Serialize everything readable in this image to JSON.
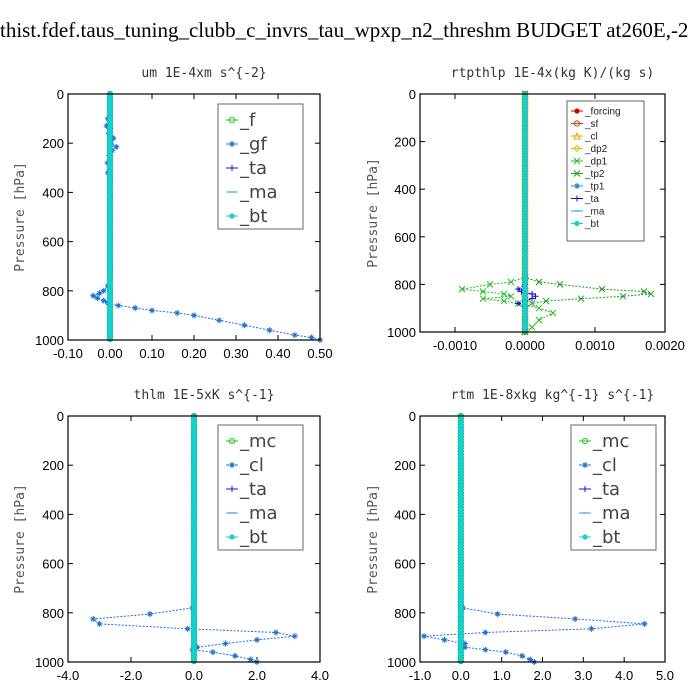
{
  "title": "thist.fdef.taus_tuning_clubb_c_invrs_tau_wpxp_n2_threshm  BUDGET at260E,-2",
  "chart_data": [
    {
      "type": "line",
      "title": "um   1E-4xm s^{-2}",
      "ylabel": "Pressure [hPa]",
      "xlim": [
        -0.1,
        0.5
      ],
      "ylim": [
        1000,
        0
      ],
      "xticks": [
        "-0.10",
        "0.00",
        "0.10",
        "0.20",
        "0.30",
        "0.40",
        "0.50"
      ],
      "yticks": [
        "0",
        "200",
        "400",
        "600",
        "800",
        "1000"
      ],
      "legend_position": "upper-right",
      "series": [
        {
          "name": "_f",
          "color": "#22cc22",
          "marker": "circle",
          "y": [
            0,
            100,
            200,
            300,
            400,
            500,
            600,
            700,
            800,
            850,
            900,
            950,
            1000
          ],
          "values": [
            0,
            0,
            0,
            0,
            0,
            0,
            0,
            0,
            0,
            0,
            0,
            0,
            0
          ]
        },
        {
          "name": "_gf",
          "color": "#1f6fd0",
          "marker": "star",
          "y": [
            0,
            50,
            100,
            130,
            140,
            160,
            180,
            200,
            215,
            230,
            250,
            280,
            300,
            320,
            350,
            400,
            500,
            600,
            700,
            780,
            800,
            810,
            820,
            830,
            840,
            850,
            860,
            870,
            880,
            890,
            900,
            920,
            940,
            960,
            980,
            990,
            1000
          ],
          "values": [
            0,
            0,
            -0.005,
            -0.008,
            0,
            -0.003,
            0.008,
            0.002,
            0.015,
            0.005,
            -0.002,
            -0.006,
            0,
            -0.005,
            0,
            0,
            0,
            0,
            0,
            -0.005,
            -0.015,
            -0.025,
            -0.04,
            -0.03,
            -0.015,
            -0.005,
            0.02,
            0.06,
            0.1,
            0.16,
            0.2,
            0.26,
            0.32,
            0.38,
            0.44,
            0.48,
            0.5
          ]
        },
        {
          "name": "_ta",
          "color": "#1414d0",
          "marker": "plus",
          "y": [
            0,
            200,
            400,
            600,
            800,
            850,
            900,
            1000
          ],
          "values": [
            0,
            0,
            0,
            0,
            0,
            0,
            0,
            0
          ]
        },
        {
          "name": "_ma",
          "color": "#2aa0d8",
          "marker": "dash",
          "y": [
            0,
            200,
            400,
            600,
            800,
            1000
          ],
          "values": [
            0,
            0,
            0,
            0,
            0,
            0
          ]
        },
        {
          "name": "_bt",
          "color": "#10d0d0",
          "marker": "dot",
          "y": [
            0,
            200,
            400,
            600,
            800,
            1000
          ],
          "values": [
            0,
            0,
            0,
            0,
            0,
            0
          ]
        }
      ]
    },
    {
      "type": "line",
      "title": "rtpthlp   1E-4x(kg K)/(kg s)",
      "ylabel": "Pressure [hPa]",
      "xlim": [
        -0.0015,
        0.002
      ],
      "ylim": [
        1000,
        0
      ],
      "xticks": [
        "-0.0010",
        "0.0000",
        "0.0010",
        "0.0020"
      ],
      "xtick_values": [
        -0.001,
        0,
        0.001,
        0.002
      ],
      "yticks": [
        "0",
        "200",
        "400",
        "600",
        "800",
        "1000"
      ],
      "legend_position": "upper-right",
      "series": [
        {
          "name": "_forcing",
          "color": "#d00000",
          "marker": "dot",
          "y": [
            0,
            200,
            400,
            600,
            800,
            1000
          ],
          "values": [
            0,
            0,
            0,
            0,
            0,
            0
          ]
        },
        {
          "name": "_sf",
          "color": "#d04000",
          "marker": "circle",
          "y": [
            0,
            200,
            400,
            600,
            800,
            1000
          ],
          "values": [
            0,
            0,
            0,
            0,
            0,
            0
          ]
        },
        {
          "name": "_cl",
          "color": "#f0a000",
          "marker": "triangle",
          "y": [
            0,
            500,
            1000
          ],
          "values": [
            0,
            0,
            0
          ]
        },
        {
          "name": "_dp2",
          "color": "#e0c000",
          "marker": "diamond",
          "y": [
            0,
            500,
            1000
          ],
          "values": [
            0,
            0,
            0
          ]
        },
        {
          "name": "_dp1",
          "color": "#20c020",
          "marker": "cross",
          "y": [
            0,
            770,
            790,
            800,
            820,
            830,
            840,
            850,
            860,
            870,
            880,
            900,
            920,
            950,
            980,
            1000
          ],
          "values": [
            0,
            0,
            -0.0002,
            -0.0005,
            -0.0009,
            -0.0006,
            -0.0003,
            -0.0002,
            -0.0006,
            -0.0003,
            -0.0001,
            0.0002,
            0.0004,
            0.0002,
            0.0001,
            0
          ]
        },
        {
          "name": "_tp2",
          "color": "#20a020",
          "marker": "cross",
          "y": [
            0,
            770,
            790,
            800,
            820,
            830,
            840,
            850,
            860,
            870,
            880,
            900,
            950,
            1000
          ],
          "values": [
            0,
            0,
            0.0002,
            0.0005,
            0.0011,
            0.0017,
            0.0018,
            0.0014,
            0.0008,
            0.0003,
            0.0001,
            0,
            0,
            0
          ]
        },
        {
          "name": "_tp1",
          "color": "#2080d0",
          "marker": "star",
          "y": [
            0,
            500,
            1000
          ],
          "values": [
            0,
            0,
            0
          ]
        },
        {
          "name": "_ta",
          "color": "#1010d0",
          "marker": "plus",
          "y": [
            0,
            800,
            820,
            830,
            840,
            850,
            860,
            870,
            880,
            900,
            1000
          ],
          "values": [
            0,
            0,
            -0.0001,
            -5e-05,
            0.0001,
            0.00015,
            0.0001,
            0,
            -0.0001,
            0,
            0
          ]
        },
        {
          "name": "_ma",
          "color": "#2aa0d8",
          "marker": "dash",
          "y": [
            0,
            500,
            1000
          ],
          "values": [
            0,
            0,
            0
          ]
        },
        {
          "name": "_bt",
          "color": "#10d0d0",
          "marker": "dot",
          "y": [
            0,
            500,
            1000
          ],
          "values": [
            0,
            0,
            0
          ]
        }
      ]
    },
    {
      "type": "line",
      "title": "thlm   1E-5xK s^{-1}",
      "ylabel": "Pressure [hPa]",
      "xlim": [
        -4,
        4
      ],
      "ylim": [
        1000,
        0
      ],
      "xticks": [
        "-4.0",
        "-2.0",
        "0.0",
        "2.0",
        "4.0"
      ],
      "yticks": [
        "0",
        "200",
        "400",
        "600",
        "800",
        "1000"
      ],
      "legend_position": "upper-right",
      "series": [
        {
          "name": "_mc",
          "color": "#22cc22",
          "marker": "circle",
          "y": [
            0,
            200,
            400,
            600,
            800,
            1000
          ],
          "values": [
            0,
            0,
            0,
            0,
            0,
            0
          ]
        },
        {
          "name": "_cl",
          "color": "#1f6fd0",
          "marker": "star",
          "y": [
            0,
            780,
            805,
            825,
            845,
            865,
            880,
            895,
            910,
            925,
            940,
            950,
            960,
            975,
            990,
            1000
          ],
          "values": [
            0,
            -0.05,
            -1.4,
            -3.2,
            -3.0,
            -0.2,
            2.6,
            3.2,
            2.0,
            1.0,
            0.1,
            -0.05,
            0.6,
            1.3,
            1.8,
            2.0
          ]
        },
        {
          "name": "_ta",
          "color": "#1414d0",
          "marker": "plus",
          "y": [
            0,
            200,
            400,
            600,
            800,
            1000
          ],
          "values": [
            0,
            0,
            0,
            0,
            0,
            0
          ]
        },
        {
          "name": "_ma",
          "color": "#2aa0d8",
          "marker": "dash",
          "y": [
            0,
            200,
            400,
            600,
            800,
            1000
          ],
          "values": [
            0,
            0,
            0,
            0,
            0,
            0
          ]
        },
        {
          "name": "_bt",
          "color": "#10d0d0",
          "marker": "dot",
          "y": [
            0,
            200,
            400,
            600,
            800,
            1000
          ],
          "values": [
            0,
            0,
            0,
            0,
            0,
            0
          ]
        }
      ]
    },
    {
      "type": "line",
      "title": "rtm   1E-8xkg kg^{-1} s^{-1}",
      "ylabel": "Pressure [hPa]",
      "xlim": [
        -1,
        5
      ],
      "ylim": [
        1000,
        0
      ],
      "xticks": [
        "-1.0",
        "0.0",
        "1.0",
        "2.0",
        "3.0",
        "4.0",
        "5.0"
      ],
      "yticks": [
        "0",
        "200",
        "400",
        "600",
        "800",
        "1000"
      ],
      "legend_position": "upper-right",
      "series": [
        {
          "name": "_mc",
          "color": "#22cc22",
          "marker": "circle",
          "y": [
            0,
            200,
            400,
            600,
            800,
            1000
          ],
          "values": [
            0,
            0,
            0,
            0,
            0,
            0
          ]
        },
        {
          "name": "_cl",
          "color": "#1f6fd0",
          "marker": "star",
          "y": [
            0,
            780,
            805,
            825,
            845,
            865,
            880,
            895,
            910,
            925,
            940,
            950,
            960,
            975,
            990,
            1000
          ],
          "values": [
            0,
            0.05,
            0.9,
            2.8,
            4.5,
            3.2,
            0.6,
            -0.9,
            -0.4,
            0.1,
            0.1,
            0.6,
            1.1,
            1.5,
            1.7,
            1.8
          ]
        },
        {
          "name": "_ta",
          "color": "#1414d0",
          "marker": "plus",
          "y": [
            0,
            200,
            400,
            600,
            800,
            1000
          ],
          "values": [
            0,
            0,
            0,
            0,
            0,
            0
          ]
        },
        {
          "name": "_ma",
          "color": "#2aa0d8",
          "marker": "dash",
          "y": [
            0,
            200,
            400,
            600,
            800,
            1000
          ],
          "values": [
            0,
            0,
            0,
            0,
            0,
            0
          ]
        },
        {
          "name": "_bt",
          "color": "#10d0d0",
          "marker": "dot",
          "y": [
            0,
            200,
            400,
            600,
            800,
            1000
          ],
          "values": [
            0,
            0,
            0,
            0,
            0,
            0
          ]
        }
      ]
    }
  ]
}
